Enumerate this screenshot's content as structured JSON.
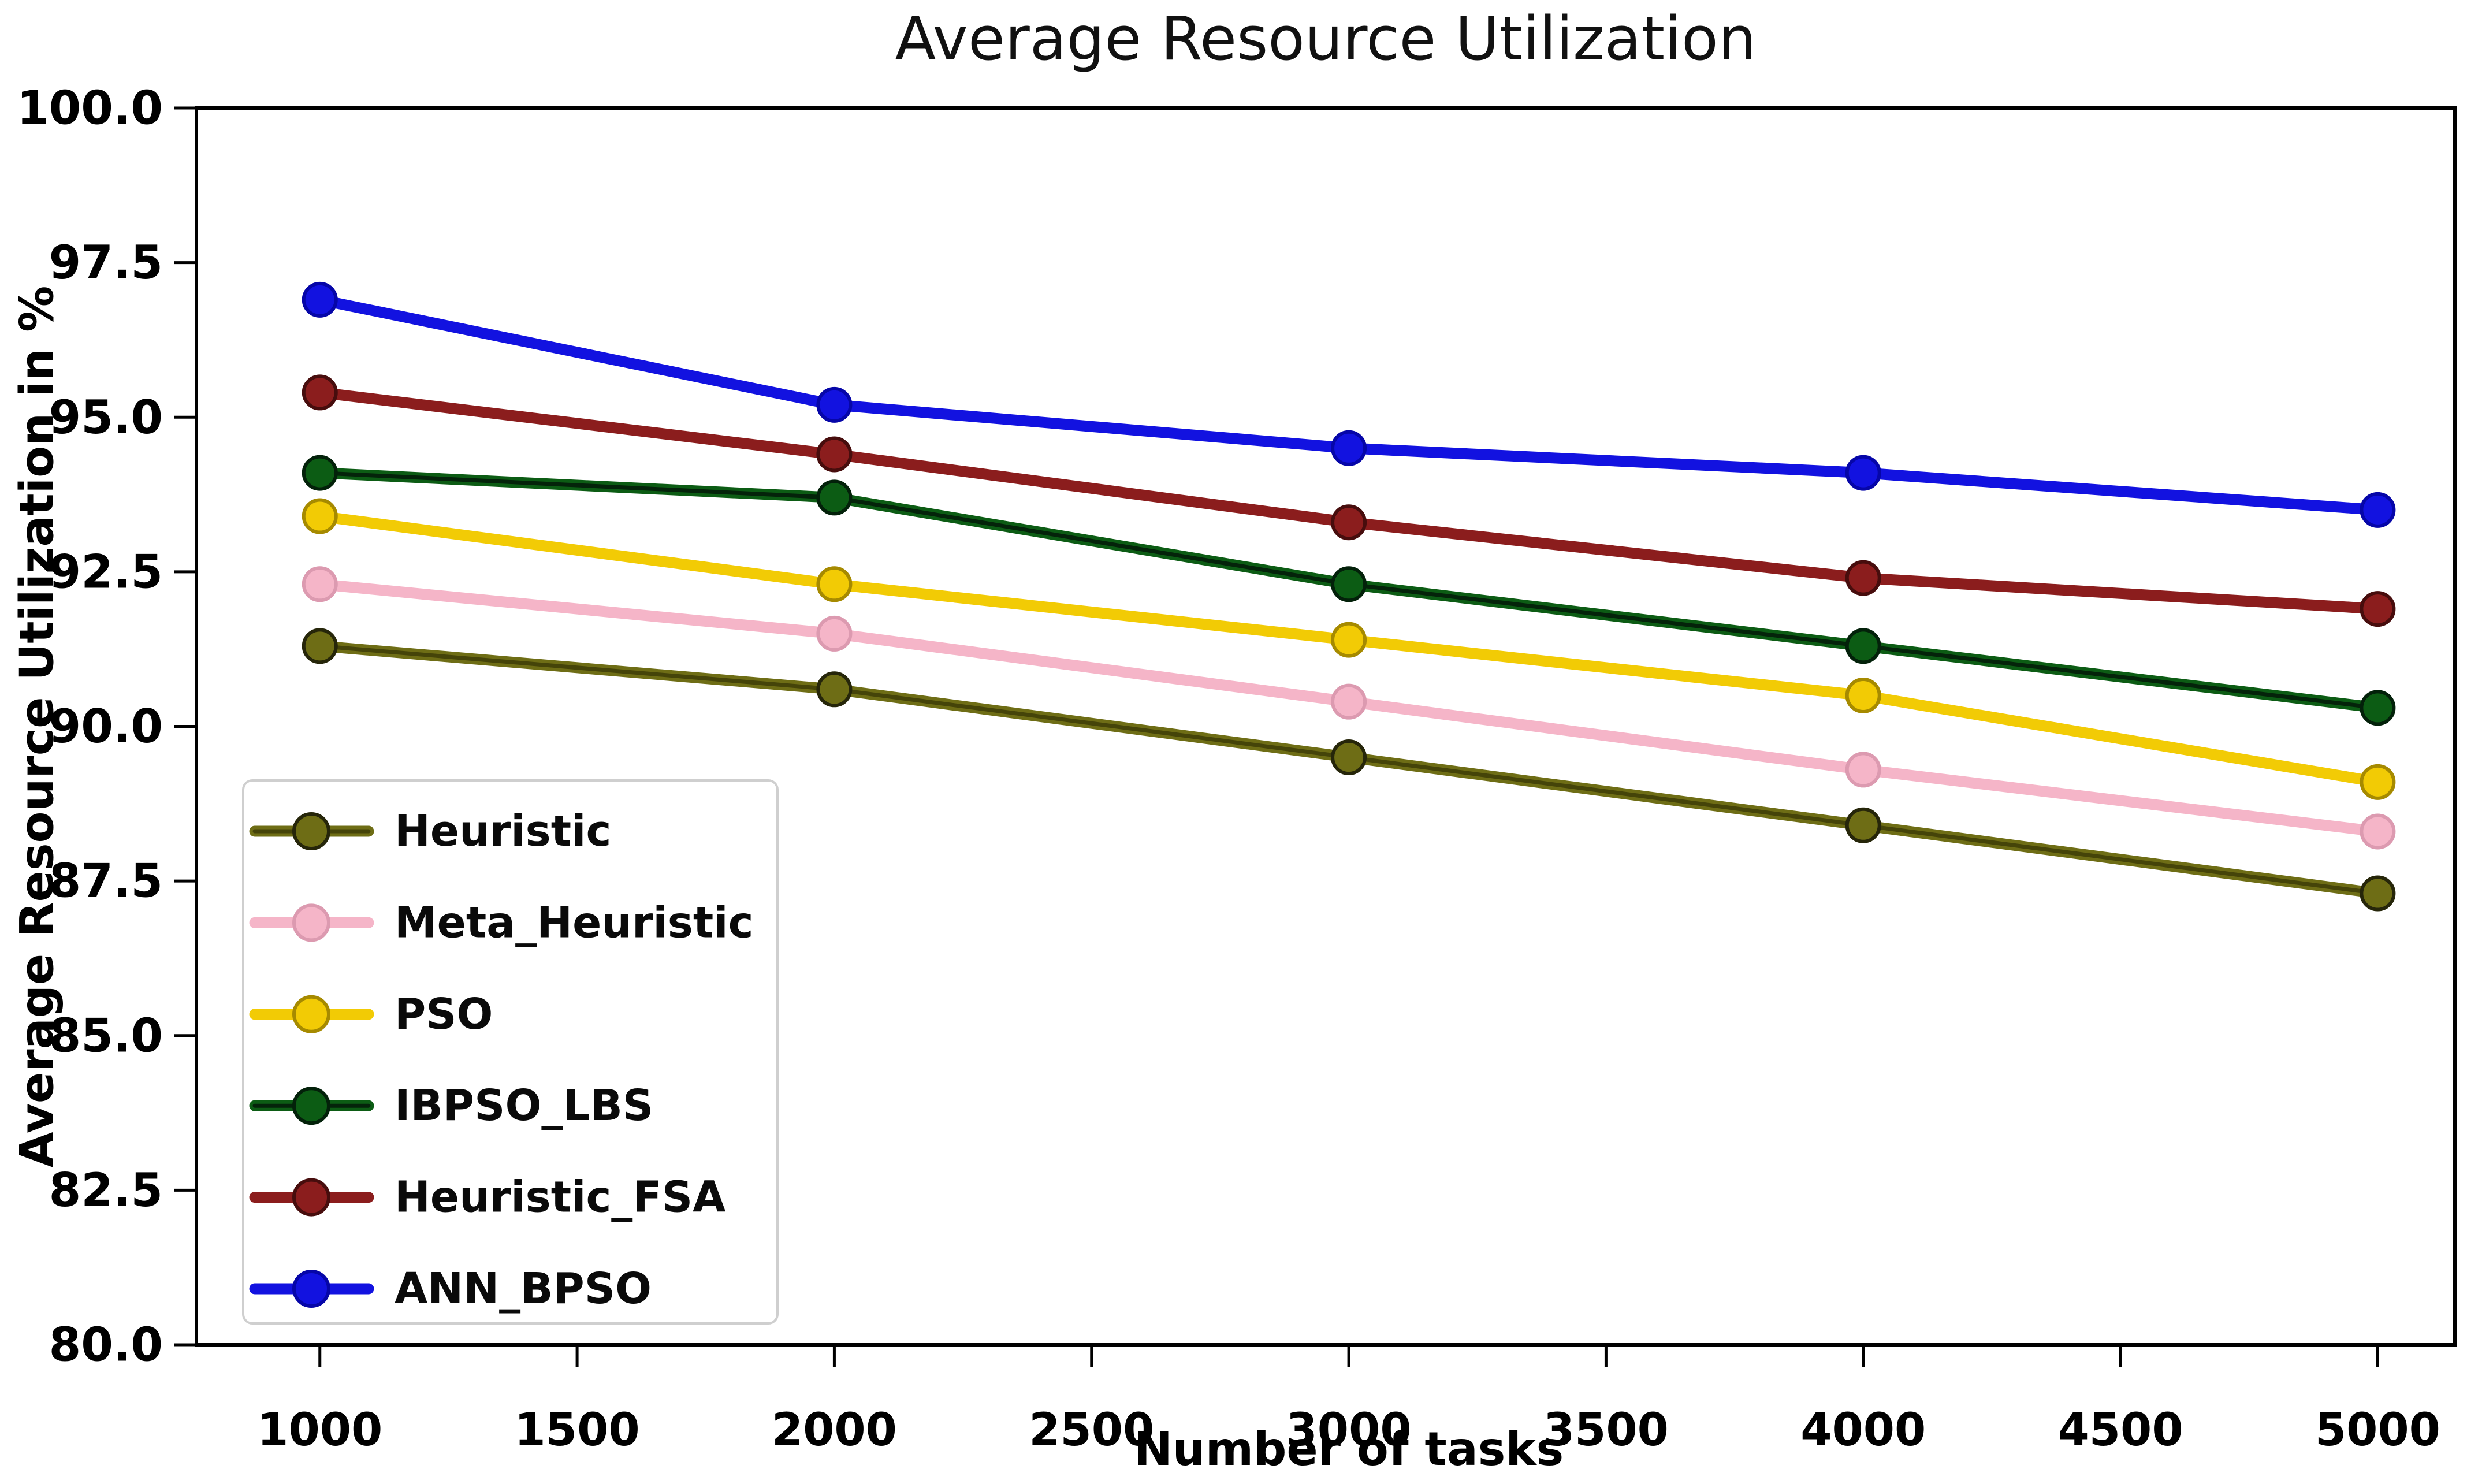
{
  "chart_data": {
    "type": "line",
    "title": "Average Resource Utilization",
    "xlabel": "Number of tasks",
    "ylabel": "Average Resource Utilization in %",
    "x": [
      1000,
      2000,
      3000,
      4000,
      5000
    ],
    "xticks": [
      1000,
      1500,
      2000,
      2500,
      3000,
      3500,
      4000,
      4500,
      5000
    ],
    "yticks": [
      80.0,
      82.5,
      85.0,
      87.5,
      90.0,
      92.5,
      95.0,
      97.5,
      100.0
    ],
    "xlim": [
      760,
      5150
    ],
    "ylim": [
      80.0,
      100.0
    ],
    "grid": false,
    "legend_position": "lower left",
    "frame_color": "#000000",
    "legend_border_color": "#cfcfcf",
    "series": [
      {
        "name": "Heuristic",
        "color": "#6e6d15",
        "marker_edge": "#26260a",
        "core": "#454409",
        "values": [
          91.3,
          90.6,
          89.5,
          88.4,
          87.3
        ]
      },
      {
        "name": "Meta_Heuristic",
        "color": "#f5b5c8",
        "marker_edge": "#dc9ab0",
        "values": [
          92.3,
          91.5,
          90.4,
          89.3,
          88.3
        ]
      },
      {
        "name": "PSO",
        "color": "#f2cb05",
        "marker_edge": "#a68a00",
        "values": [
          93.4,
          92.3,
          91.4,
          90.5,
          89.1
        ]
      },
      {
        "name": "IBPSO_LBS",
        "color": "#0c5c14",
        "marker_edge": "#03210a",
        "core": "#04230a",
        "values": [
          94.1,
          93.7,
          92.3,
          91.3,
          90.3
        ]
      },
      {
        "name": "Heuristic_FSA",
        "color": "#8b1d1d",
        "marker_edge": "#470d0d",
        "values": [
          95.4,
          94.4,
          93.3,
          92.4,
          91.9
        ]
      },
      {
        "name": "ANN_BPSO",
        "color": "#1212e0",
        "marker_edge": "#0606a8",
        "values": [
          96.9,
          95.2,
          94.5,
          94.1,
          93.5
        ]
      }
    ]
  }
}
